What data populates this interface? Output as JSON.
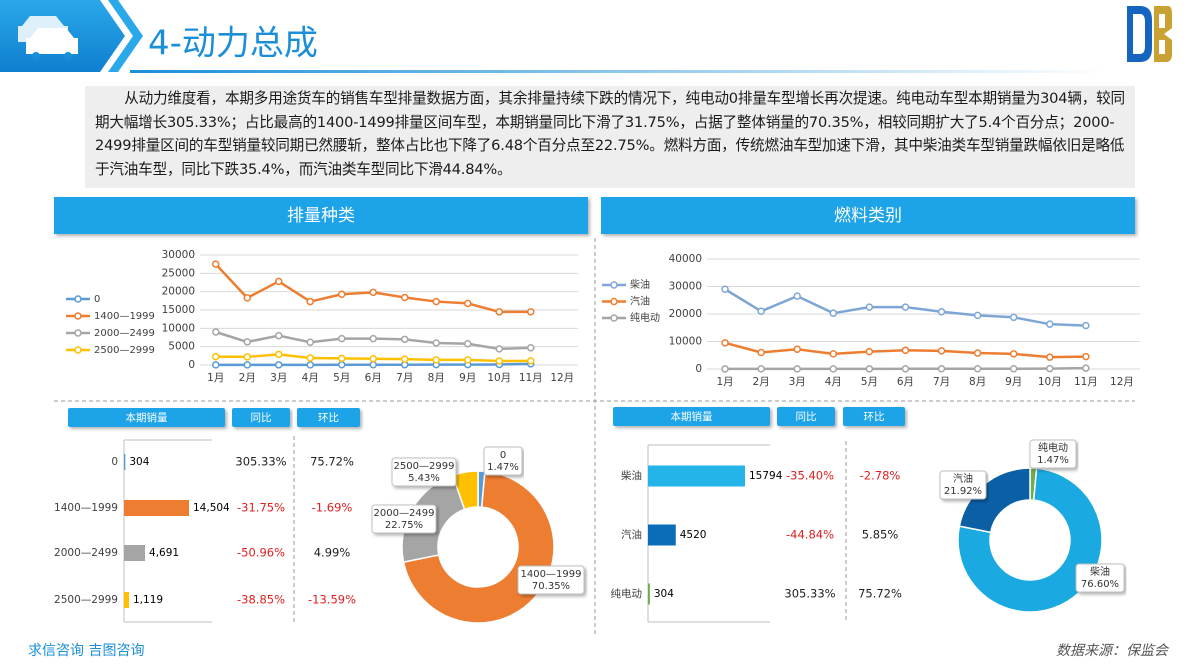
{
  "header": {
    "title": "4-动力总成"
  },
  "intro": "从动力维度看，本期多用途货车的销售车型排量数据方面，其余排量持续下跌的情况下，纯电动0排量车型增长再次提速。纯电动车型本期销量为304辆，较同期大幅增长305.33%；占比最高的1400-1499排量区间车型，本期销量同比下滑了31.75%，占据了整体销量的70.35%，相较同期扩大了5.4个百分点；2000-2499排量区间的车型销量较同期已然腰斩，整体占比也下降了6.48个百分点至22.75%。燃料方面，传统燃油车型加速下滑，其中柴油类车型销量跌幅依旧是略低于汽油车型，同比下跌35.4%，而汽油类车型同比下滑44.84%。",
  "sections": [
    "排量种类",
    "燃料类别"
  ],
  "chart_data": [
    {
      "type": "line",
      "categories": [
        "1月",
        "2月",
        "3月",
        "4月",
        "5月",
        "6月",
        "7月",
        "8月",
        "9月",
        "10月",
        "11月",
        "12月"
      ],
      "series": [
        {
          "name": "0",
          "color": "#5b9bd5",
          "values": [
            30,
            40,
            50,
            40,
            60,
            70,
            80,
            90,
            100,
            150,
            304,
            null
          ]
        },
        {
          "name": "1400—1999",
          "color": "#ed7d31",
          "values": [
            27500,
            18300,
            22800,
            17300,
            19300,
            19800,
            18400,
            17300,
            16800,
            14500,
            14504,
            null
          ]
        },
        {
          "name": "2000—2499",
          "color": "#a5a5a5",
          "values": [
            9000,
            6300,
            8000,
            6200,
            7200,
            7200,
            7000,
            6000,
            5800,
            4400,
            4691,
            null
          ]
        },
        {
          "name": "2500—2999",
          "color": "#ffc000",
          "values": [
            2300,
            2200,
            2900,
            1900,
            1800,
            1700,
            1600,
            1400,
            1400,
            1100,
            1119,
            null
          ]
        }
      ],
      "ylim": [
        0,
        30000
      ],
      "yticks": [
        0,
        5000,
        10000,
        15000,
        20000,
        25000,
        30000
      ],
      "grid": true,
      "legend": "left"
    },
    {
      "type": "line",
      "categories": [
        "1月",
        "2月",
        "3月",
        "4月",
        "5月",
        "6月",
        "7月",
        "8月",
        "9月",
        "10月",
        "11月",
        "12月"
      ],
      "series": [
        {
          "name": "柴油",
          "color": "#7ea6d4",
          "values": [
            29000,
            21000,
            26500,
            20300,
            22500,
            22500,
            20800,
            19500,
            18800,
            16300,
            15794,
            null
          ]
        },
        {
          "name": "汽油",
          "color": "#ed7d31",
          "values": [
            9500,
            6000,
            7200,
            5500,
            6300,
            6800,
            6600,
            5800,
            5500,
            4300,
            4520,
            null
          ]
        },
        {
          "name": "纯电动",
          "color": "#a5a5a5",
          "values": [
            30,
            40,
            50,
            40,
            60,
            70,
            80,
            90,
            100,
            150,
            304,
            null
          ]
        }
      ],
      "ylim": [
        0,
        40000
      ],
      "yticks": [
        0,
        10000,
        20000,
        30000,
        40000
      ],
      "grid": true,
      "legend": "left"
    },
    {
      "type": "hbar",
      "categories": [
        "0",
        "1400—1999",
        "2000—2499",
        "2500—2999"
      ],
      "values": [
        304,
        14504,
        4691,
        1119
      ],
      "value_labels": [
        "304",
        "14,504",
        "4,691",
        "1,119"
      ],
      "colors": [
        "#5b9bd5",
        "#ed7d31",
        "#a5a5a5",
        "#ffc000"
      ]
    },
    {
      "type": "donut",
      "categories": [
        "0",
        "1400—1999",
        "2000—2499",
        "2500—2999"
      ],
      "values": [
        1.47,
        70.35,
        22.75,
        5.43
      ],
      "value_labels": [
        "1.47%",
        "70.35%",
        "22.75%",
        "5.43%"
      ],
      "colors": [
        "#5b9bd5",
        "#ed7d31",
        "#a5a5a5",
        "#ffc000"
      ]
    },
    {
      "type": "hbar",
      "categories": [
        "柴油",
        "汽油",
        "纯电动"
      ],
      "values": [
        15794,
        4520,
        304
      ],
      "value_labels": [
        "15794",
        "4520",
        "304"
      ],
      "colors": [
        "#25b4ea",
        "#0b6cb8",
        "#70ad47"
      ]
    },
    {
      "type": "donut",
      "categories": [
        "纯电动",
        "柴油",
        "汽油"
      ],
      "values": [
        1.47,
        76.6,
        21.92
      ],
      "value_labels": [
        "1.47%",
        "76.60%",
        "21.92%"
      ],
      "colors": [
        "#70ad47",
        "#1ba9e1",
        "#0b5fa5"
      ]
    }
  ],
  "tables": [
    {
      "headers": [
        "本期销量",
        "同比",
        "环比"
      ],
      "yoy": [
        "305.33%",
        "-31.75%",
        "-50.96%",
        "-38.85%"
      ],
      "mom": [
        "75.72%",
        "-1.69%",
        "4.99%",
        "-13.59%"
      ]
    },
    {
      "headers": [
        "本期销量",
        "同比",
        "环比"
      ],
      "yoy": [
        "-35.40%",
        "-44.84%",
        "305.33%"
      ],
      "mom": [
        "-2.78%",
        "5.85%",
        "75.72%"
      ]
    }
  ],
  "footer": {
    "left": "求信咨询  吉图咨询",
    "right": "数据来源：保监会"
  }
}
